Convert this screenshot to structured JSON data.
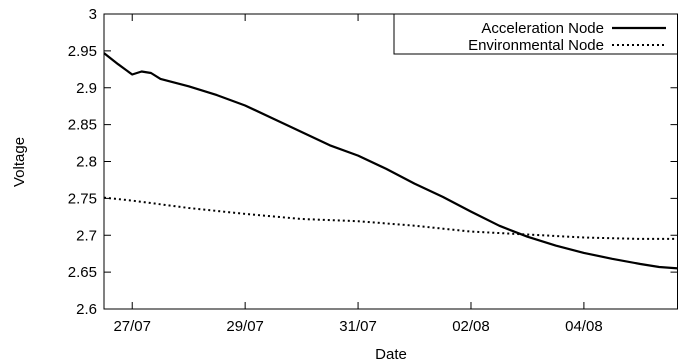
{
  "chart_data": {
    "type": "line",
    "xlabel": "Date",
    "ylabel": "Voltage",
    "x_axis_kind": "date",
    "xlim": [
      "2013-07-26T12:00",
      "2013-08-05T16:00"
    ],
    "ylim": [
      2.6,
      3.0
    ],
    "grid": false,
    "legend_position": "top-right",
    "xticks": [
      {
        "x": "2013-07-27",
        "label": "27/07"
      },
      {
        "x": "2013-07-29",
        "label": "29/07"
      },
      {
        "x": "2013-07-31",
        "label": "31/07"
      },
      {
        "x": "2013-08-02",
        "label": "02/08"
      },
      {
        "x": "2013-08-04",
        "label": "04/08"
      }
    ],
    "yticks": [
      2.6,
      2.65,
      2.7,
      2.75,
      2.8,
      2.85,
      2.9,
      2.95,
      3
    ],
    "series": [
      {
        "name": "Acceleration Node",
        "line_style": "solid",
        "color": "#000000",
        "points": [
          [
            "2013-07-26T12:00",
            2.947
          ],
          [
            "2013-07-26T18:00",
            2.932
          ],
          [
            "2013-07-27T00:00",
            2.918
          ],
          [
            "2013-07-27T04:00",
            2.922
          ],
          [
            "2013-07-27T08:00",
            2.92
          ],
          [
            "2013-07-27T12:00",
            2.912
          ],
          [
            "2013-07-28T00:00",
            2.902
          ],
          [
            "2013-07-28T12:00",
            2.89
          ],
          [
            "2013-07-29T00:00",
            2.876
          ],
          [
            "2013-07-29T12:00",
            2.858
          ],
          [
            "2013-07-30T00:00",
            2.84
          ],
          [
            "2013-07-30T12:00",
            2.822
          ],
          [
            "2013-07-31T00:00",
            2.808
          ],
          [
            "2013-07-31T12:00",
            2.79
          ],
          [
            "2013-08-01T00:00",
            2.77
          ],
          [
            "2013-08-01T12:00",
            2.752
          ],
          [
            "2013-08-02T00:00",
            2.732
          ],
          [
            "2013-08-02T12:00",
            2.713
          ],
          [
            "2013-08-03T00:00",
            2.698
          ],
          [
            "2013-08-03T12:00",
            2.686
          ],
          [
            "2013-08-04T00:00",
            2.676
          ],
          [
            "2013-08-04T12:00",
            2.668
          ],
          [
            "2013-08-05T00:00",
            2.661
          ],
          [
            "2013-08-05T08:00",
            2.657
          ],
          [
            "2013-08-05T16:00",
            2.655
          ]
        ]
      },
      {
        "name": "Environmental Node",
        "line_style": "dotted",
        "color": "#000000",
        "points": [
          [
            "2013-07-26T12:00",
            2.751
          ],
          [
            "2013-07-27T00:00",
            2.747
          ],
          [
            "2013-07-28T00:00",
            2.737
          ],
          [
            "2013-07-29T00:00",
            2.729
          ],
          [
            "2013-07-30T00:00",
            2.722
          ],
          [
            "2013-07-31T00:00",
            2.719
          ],
          [
            "2013-08-01T00:00",
            2.713
          ],
          [
            "2013-08-02T00:00",
            2.705
          ],
          [
            "2013-08-03T00:00",
            2.701
          ],
          [
            "2013-08-04T00:00",
            2.697
          ],
          [
            "2013-08-05T00:00",
            2.695
          ],
          [
            "2013-08-05T16:00",
            2.695
          ]
        ]
      }
    ]
  }
}
